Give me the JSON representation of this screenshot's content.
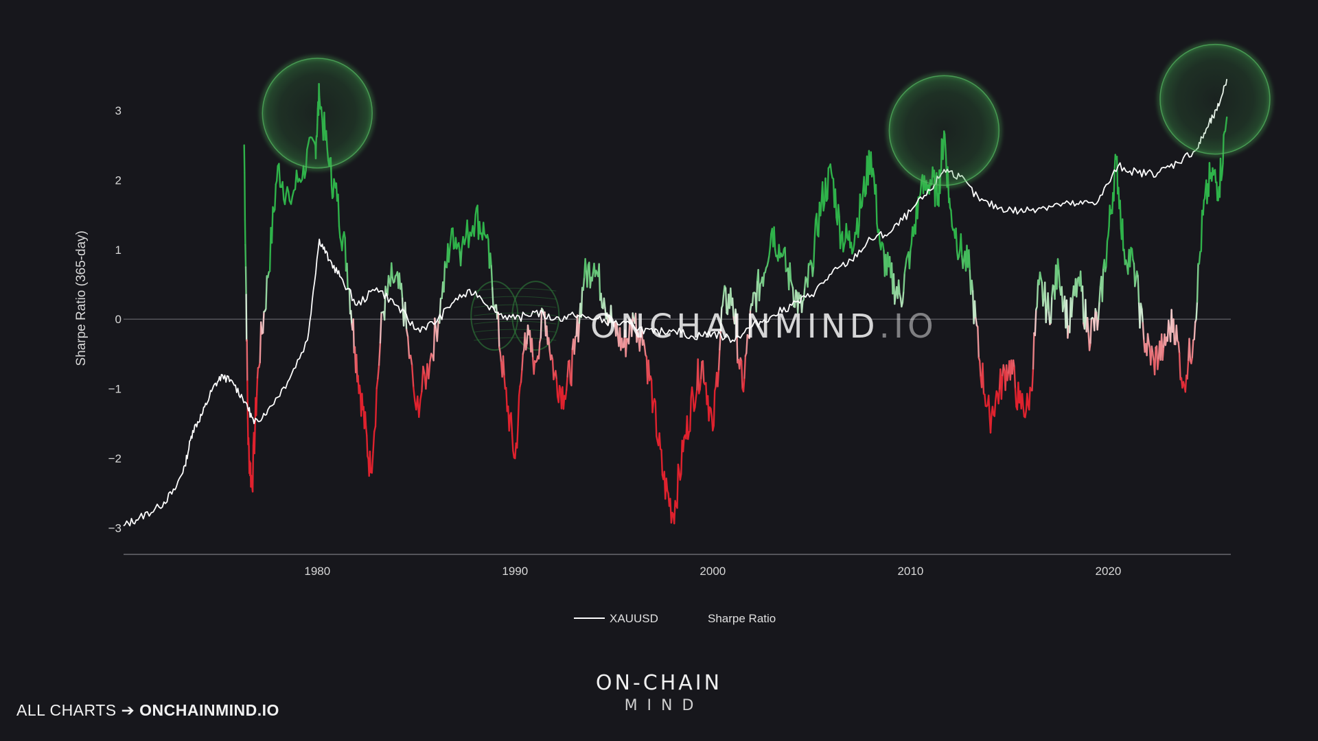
{
  "footer": {
    "prefix": "ALL CHARTS ➔",
    "site": "ONCHAINMIND.IO"
  },
  "brand": {
    "line1": "ON-CHAIN",
    "line2": "MIND"
  },
  "watermark": {
    "main": "ONCHAINMIND",
    "suffix": ".IO"
  },
  "colors": {
    "background": "#17171c",
    "positive": "#2fb34a",
    "negative": "#e0222e",
    "price_line": "#ffffff",
    "highlight": "#3fa34d"
  },
  "chart_data": {
    "type": "line",
    "title": "",
    "xlabel": "",
    "ylabel": "Sharpe Ratio (365-day)",
    "xlim": [
      1970.2,
      2026.2
    ],
    "ylim": [
      -3.3,
      3.6
    ],
    "yticks": [
      -3,
      -2,
      -1,
      0,
      1,
      2,
      3
    ],
    "ytick_labels": [
      "−3",
      "−2",
      "−1",
      "0",
      "1",
      "2",
      "3"
    ],
    "xticks": [
      1980,
      1990,
      2000,
      2010,
      2020
    ],
    "xtick_labels": [
      "1980",
      "1990",
      "2000",
      "2010",
      "2020"
    ],
    "grid": false,
    "zero_line": true,
    "legend": {
      "placement": "bottom-center",
      "entries": [
        "XAUUSD",
        "Sharpe Ratio"
      ]
    },
    "highlighted_peaks": [
      {
        "x": 1980.0,
        "y": 3.0
      },
      {
        "x": 2011.7,
        "y": 2.75
      },
      {
        "x": 2025.4,
        "y": 3.2
      }
    ],
    "series": [
      {
        "name": "XAUUSD",
        "style": "white line",
        "x": [
          1970.2,
          1971,
          1972,
          1972.8,
          1973.3,
          1973.7,
          1974.2,
          1974.7,
          1975.2,
          1975.8,
          1976.4,
          1976.8,
          1977.5,
          1978.5,
          1979.5,
          1980.1,
          1980.6,
          1981.2,
          1982.0,
          1983.0,
          1984.0,
          1985.0,
          1986.0,
          1987.0,
          1988.0,
          1989.0,
          1990.0,
          1991.0,
          1992.0,
          1993.0,
          1994.0,
          1995.0,
          1996.0,
          1997.0,
          1998.0,
          1999.0,
          2000.0,
          2001.0,
          2002.0,
          2003.0,
          2004.0,
          2005.0,
          2006.0,
          2007.0,
          2008.0,
          2009.0,
          2010.0,
          2011.0,
          2011.7,
          2012.5,
          2013.5,
          2014.5,
          2015.5,
          2016.5,
          2017.5,
          2018.5,
          2019.5,
          2020.5,
          2021.5,
          2022.5,
          2023.5,
          2024.5,
          2025.0,
          2025.5,
          2026.0
        ],
        "y": [
          -2.97,
          -2.85,
          -2.7,
          -2.45,
          -2.1,
          -1.6,
          -1.35,
          -1.0,
          -0.8,
          -0.95,
          -1.2,
          -1.5,
          -1.3,
          -0.9,
          -0.3,
          1.15,
          0.85,
          0.6,
          0.2,
          0.45,
          0.2,
          -0.15,
          -0.05,
          0.3,
          0.4,
          0.1,
          0.0,
          0.1,
          0.0,
          0.05,
          0.0,
          -0.05,
          -0.1,
          -0.2,
          -0.15,
          -0.25,
          -0.2,
          -0.3,
          -0.1,
          0.05,
          0.2,
          0.35,
          0.65,
          0.85,
          1.15,
          1.25,
          1.55,
          1.85,
          2.15,
          2.05,
          1.7,
          1.6,
          1.55,
          1.6,
          1.65,
          1.65,
          1.7,
          2.2,
          2.1,
          2.1,
          2.25,
          2.45,
          2.75,
          3.0,
          3.45
        ]
      },
      {
        "name": "Sharpe Ratio",
        "style": "gradient green (positive) to red (negative)",
        "x": [
          1976.3,
          1976.5,
          1976.7,
          1977.0,
          1977.5,
          1978.0,
          1978.6,
          1979.3,
          1979.9,
          1980.1,
          1980.6,
          1981.0,
          1981.5,
          1981.9,
          1982.3,
          1982.7,
          1983.3,
          1983.8,
          1984.3,
          1985.0,
          1985.7,
          1986.3,
          1986.8,
          1987.3,
          1988.0,
          1988.5,
          1989.0,
          1989.5,
          1990.0,
          1990.5,
          1991.0,
          1991.5,
          1992.0,
          1992.5,
          1993.0,
          1993.5,
          1994.0,
          1994.5,
          1995.0,
          1995.5,
          1996.0,
          1996.5,
          1997.0,
          1997.5,
          1998.0,
          1998.5,
          1999.0,
          1999.5,
          2000.0,
          2000.5,
          2001.0,
          2001.5,
          2002.0,
          2002.5,
          2003.0,
          2003.5,
          2004.0,
          2004.5,
          2005.0,
          2005.5,
          2006.0,
          2006.5,
          2007.0,
          2007.5,
          2008.0,
          2008.5,
          2009.0,
          2009.5,
          2010.0,
          2010.5,
          2011.0,
          2011.4,
          2011.7,
          2012.0,
          2012.5,
          2013.0,
          2013.5,
          2014.0,
          2014.5,
          2015.0,
          2015.5,
          2016.0,
          2016.5,
          2017.0,
          2017.5,
          2018.0,
          2018.5,
          2019.0,
          2019.5,
          2020.0,
          2020.4,
          2020.8,
          2021.3,
          2021.8,
          2022.3,
          2022.8,
          2023.3,
          2023.8,
          2024.3,
          2024.8,
          2025.2,
          2025.6,
          2026.0
        ],
        "y": [
          2.5,
          -1.8,
          -2.4,
          -0.7,
          0.6,
          2.2,
          1.7,
          2.2,
          2.5,
          3.2,
          2.2,
          1.7,
          0.8,
          -0.4,
          -1.3,
          -2.2,
          0.1,
          0.6,
          0.3,
          -1.3,
          -0.6,
          0.3,
          1.3,
          1.0,
          1.5,
          1.2,
          0.2,
          -1.0,
          -2.0,
          -0.2,
          -0.6,
          0.1,
          -0.8,
          -1.1,
          -0.5,
          0.6,
          0.8,
          0.3,
          -0.1,
          -0.4,
          0.0,
          -0.3,
          -1.2,
          -2.3,
          -2.8,
          -1.9,
          -1.1,
          -0.6,
          -1.6,
          0.2,
          0.3,
          -1.0,
          0.2,
          0.6,
          1.3,
          0.9,
          0.5,
          0.1,
          0.8,
          1.7,
          2.1,
          1.2,
          1.1,
          1.6,
          2.4,
          1.0,
          0.6,
          0.3,
          1.0,
          1.8,
          2.0,
          1.8,
          2.7,
          1.6,
          1.0,
          0.7,
          -0.6,
          -1.4,
          -1.0,
          -0.6,
          -1.2,
          -1.3,
          0.5,
          0.1,
          0.7,
          -0.1,
          0.6,
          -0.2,
          0.0,
          1.2,
          2.3,
          1.0,
          0.8,
          -0.3,
          -0.6,
          -0.4,
          0.0,
          -0.9,
          -0.3,
          1.5,
          2.1,
          1.9,
          2.9
        ]
      }
    ]
  }
}
